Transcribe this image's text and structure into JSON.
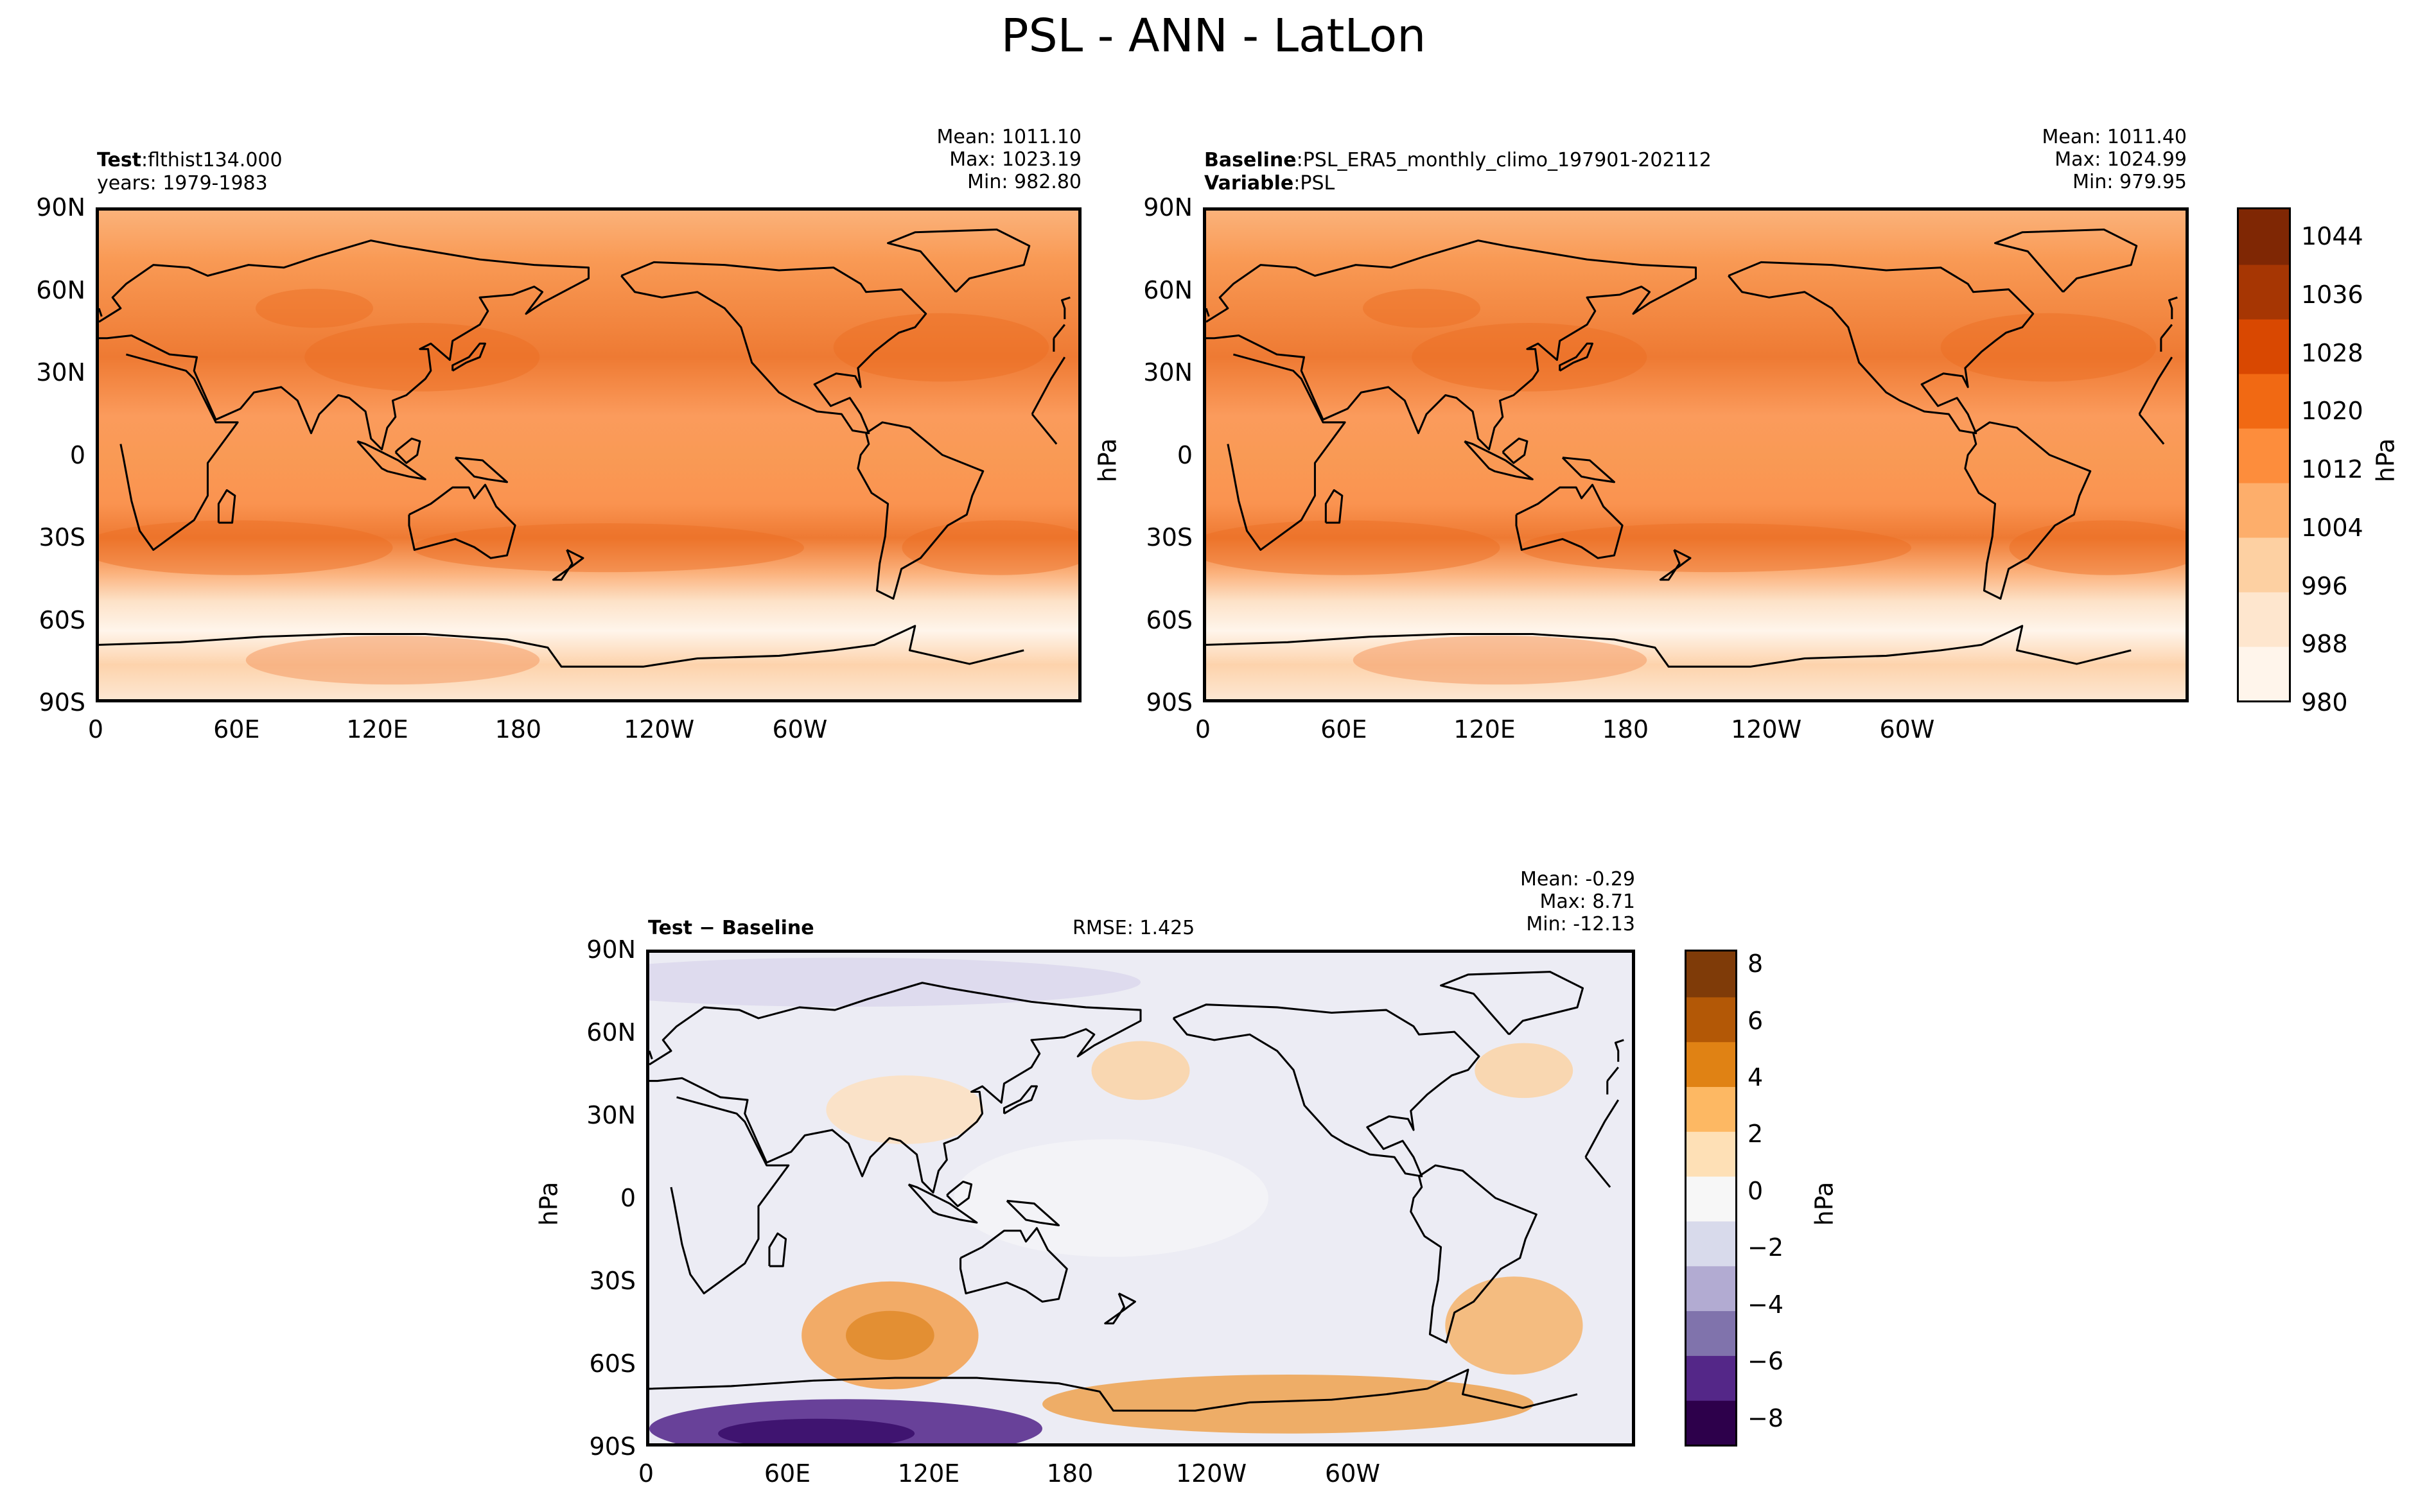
{
  "figure": {
    "title": "PSL - ANN - LatLon"
  },
  "panels": {
    "test": {
      "label_bold": "Test",
      "label_sep": ":",
      "label_value": "flthist134.000",
      "line2": "years: 1979-1983",
      "stats": [
        "Mean: 1011.10",
        "Max: 1023.19",
        "Min: 982.80"
      ]
    },
    "baseline": {
      "label_bold": "Baseline",
      "label_sep": ":",
      "label_value": "PSL_ERA5_monthly_climo_197901-202112",
      "line2_bold": "Variable",
      "line2_sep": ":",
      "line2_value": "PSL",
      "stats": [
        "Mean: 1011.40",
        "Max: 1024.99",
        "Min: 979.95"
      ]
    },
    "diff": {
      "label": "Test − Baseline",
      "rmse": "RMSE: 1.425",
      "stats": [
        "Mean: -0.29",
        "Max:  8.71",
        "Min: -12.13"
      ]
    }
  },
  "axes": {
    "lat_ticks": [
      "90N",
      "60N",
      "30N",
      "0",
      "30S",
      "60S",
      "90S"
    ],
    "lon_ticks": [
      "0",
      "60E",
      "120E",
      "180",
      "120W",
      "60W"
    ]
  },
  "colorbars": {
    "abs": {
      "unit": "hPa",
      "ticks": [
        "1044",
        "1036",
        "1028",
        "1020",
        "1012",
        "1004",
        "996",
        "988",
        "980"
      ],
      "range": [
        980,
        1048
      ],
      "colors": [
        "#fff5eb",
        "#fee6ce",
        "#fdd0a2",
        "#fdae6b",
        "#fd8d3c",
        "#f16913",
        "#d94801",
        "#a63603",
        "#7f2704"
      ]
    },
    "diff": {
      "unit": "hPa",
      "ticks": [
        "8",
        "6",
        "4",
        "2",
        "0",
        "−2",
        "−4",
        "−6",
        "−8"
      ],
      "range": [
        -9,
        8.5
      ],
      "colors": [
        "#2d004b",
        "#542788",
        "#8073ac",
        "#b2abd2",
        "#d8daeb",
        "#f7f7f7",
        "#fee0b6",
        "#fdb863",
        "#e08214",
        "#b35806",
        "#7f3b08"
      ]
    }
  },
  "colors": {
    "abs_field_mid": "#f99a55",
    "abs_field_high": "#ee7a33",
    "abs_field_low": "#fde2c8",
    "diff_field_mid": "#ececf4",
    "coast": "#000000"
  }
}
